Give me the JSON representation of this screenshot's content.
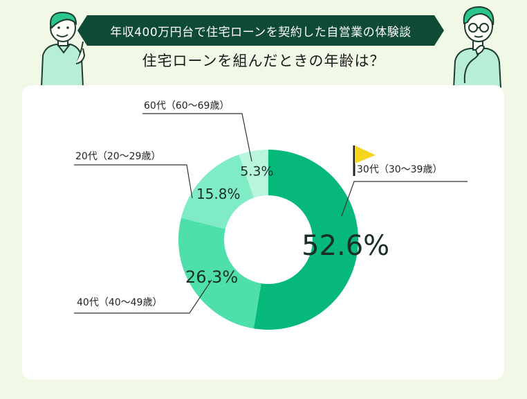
{
  "header": {
    "banner_title": "年収400万円台で住宅ローンを契約した自営業の体験談",
    "question": "住宅ローンを組んだときの年齢は？"
  },
  "colors": {
    "background": "#f1f8e6",
    "banner": "#0f4a37",
    "accent_flag": "#f6d51e",
    "leader": "#333333"
  },
  "chart_data": {
    "type": "pie",
    "style": "donut",
    "title": "住宅ローンを組んだときの年齢は？",
    "categories": [
      "30代（30〜39歳）",
      "40代（40〜49歳）",
      "20代（20〜29歳）",
      "60代（60〜69歳）"
    ],
    "values": [
      52.6,
      26.3,
      15.8,
      5.3
    ],
    "value_labels": [
      "52.6%",
      "26.3%",
      "15.8%",
      "5.3%"
    ],
    "colors": [
      "#06b87a",
      "#4edfab",
      "#80ecc6",
      "#b8f5dd"
    ],
    "highlight": "30代（30〜39歳）",
    "highlight_icon": "flag-icon"
  }
}
